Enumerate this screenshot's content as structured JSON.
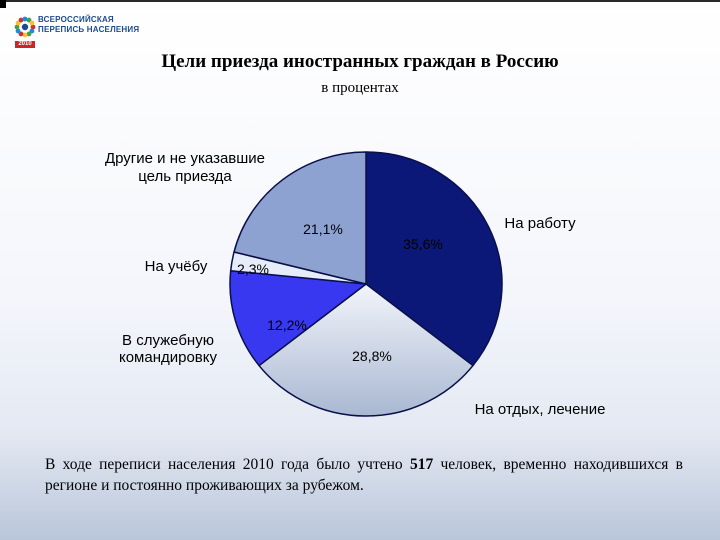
{
  "logo": {
    "line1": "ВСЕРОССИЙСКАЯ",
    "line2": "ПЕРЕПИСЬ НАСЕЛЕНИЯ",
    "year": "2010",
    "colors": [
      "#d32f2f",
      "#1e88e5",
      "#43a047",
      "#fbc02d"
    ]
  },
  "chart_data": {
    "type": "pie",
    "title": "Цели приезда иностранных граждан в Россию",
    "subtitle": "в процентах",
    "slices": [
      {
        "name": "На работу",
        "value": 35.6,
        "label": "35,6%",
        "color": "#0c1878"
      },
      {
        "name": "На отдых, лечение",
        "value": 28.8,
        "label": "28,8%",
        "color": "#dce3ee"
      },
      {
        "name": "В служебную командировку",
        "value": 12.2,
        "label": "12,2%",
        "color": "#3838f0"
      },
      {
        "name": "На учёбу",
        "value": 2.3,
        "label": "2,3%",
        "color": "#e6edf8"
      },
      {
        "name": "Другие и не указавшие цель приезда",
        "value": 21.1,
        "label": "21,1%",
        "color": "#8ea2d2"
      }
    ],
    "category_labels": {
      "work": "На работу",
      "rest": "На отдых, лечение",
      "business": "В служебную командировку",
      "study": "На учёбу",
      "other_line1": "Другие и не указавшие",
      "other_line2": "цель приезда"
    }
  },
  "footnote": {
    "before": "В ходе переписи населения 2010 года было учтено ",
    "count": "517",
    "after": " человек, временно находившихся в регионе и постоянно проживающих за рубежом."
  }
}
